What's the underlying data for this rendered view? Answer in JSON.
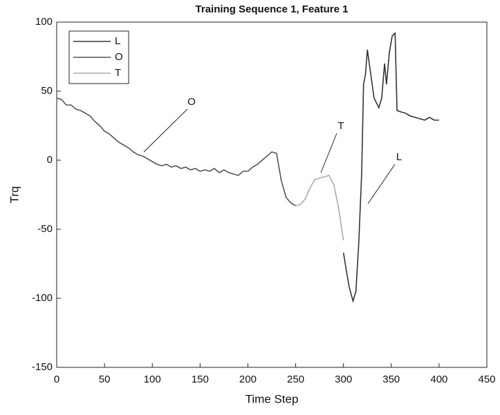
{
  "chart_data": {
    "type": "line",
    "title": "Training Sequence 1, Feature 1",
    "x_label": "Time Step",
    "y_label": "Trq",
    "xlim": [
      0,
      450
    ],
    "xticks": [
      0,
      50,
      100,
      150,
      200,
      250,
      300,
      350,
      400,
      450
    ],
    "ylim": [
      -150,
      100
    ],
    "yticks": [
      -150,
      -100,
      -50,
      0,
      50,
      100
    ],
    "grid": false,
    "legend": "upper-left",
    "series": [
      {
        "name": "L",
        "color": "#333333",
        "x": [
          300,
          303,
          306,
          310,
          313,
          316,
          319,
          321,
          323,
          325,
          328,
          332,
          337,
          340,
          343,
          345,
          348,
          351,
          354,
          356,
          360,
          365,
          370,
          375,
          380,
          385,
          390,
          395,
          400
        ],
        "values": [
          -67,
          -80,
          -92,
          -102,
          -95,
          -60,
          -10,
          55,
          62,
          80,
          65,
          45,
          38,
          45,
          70,
          55,
          78,
          90,
          92,
          36,
          35,
          34,
          32,
          31,
          30,
          29,
          31,
          29,
          29
        ]
      },
      {
        "name": "O",
        "color": "#555555",
        "x": [
          0,
          5,
          10,
          15,
          20,
          25,
          30,
          35,
          40,
          45,
          50,
          55,
          60,
          65,
          70,
          75,
          80,
          85,
          90,
          95,
          100,
          105,
          110,
          115,
          120,
          125,
          130,
          135,
          140,
          145,
          150,
          155,
          160,
          165,
          170,
          175,
          180,
          185,
          190,
          195,
          200,
          205,
          210,
          215,
          220,
          225,
          230,
          235,
          240,
          245,
          250
        ],
        "values": [
          45,
          44,
          40,
          40,
          37,
          36,
          34,
          32,
          28,
          25,
          21,
          19,
          16,
          13,
          11,
          9,
          6,
          4,
          3,
          1,
          -1,
          -3,
          -4,
          -3,
          -5,
          -4,
          -6,
          -5,
          -7,
          -6,
          -8,
          -7,
          -8,
          -6,
          -9,
          -7,
          -9,
          -10,
          -11,
          -8,
          -8,
          -5,
          -3,
          0,
          3,
          6,
          5,
          -15,
          -27,
          -31,
          -33
        ]
      },
      {
        "name": "T",
        "color": "#aaaaaa",
        "x": [
          250,
          255,
          260,
          265,
          270,
          275,
          280,
          285,
          290,
          295,
          300
        ],
        "values": [
          -33,
          -32,
          -28,
          -20,
          -14,
          -13,
          -12,
          -11,
          -18,
          -35,
          -58
        ]
      }
    ],
    "annotations": [
      {
        "text": "O"
      },
      {
        "text": "T"
      },
      {
        "text": "L"
      }
    ]
  }
}
